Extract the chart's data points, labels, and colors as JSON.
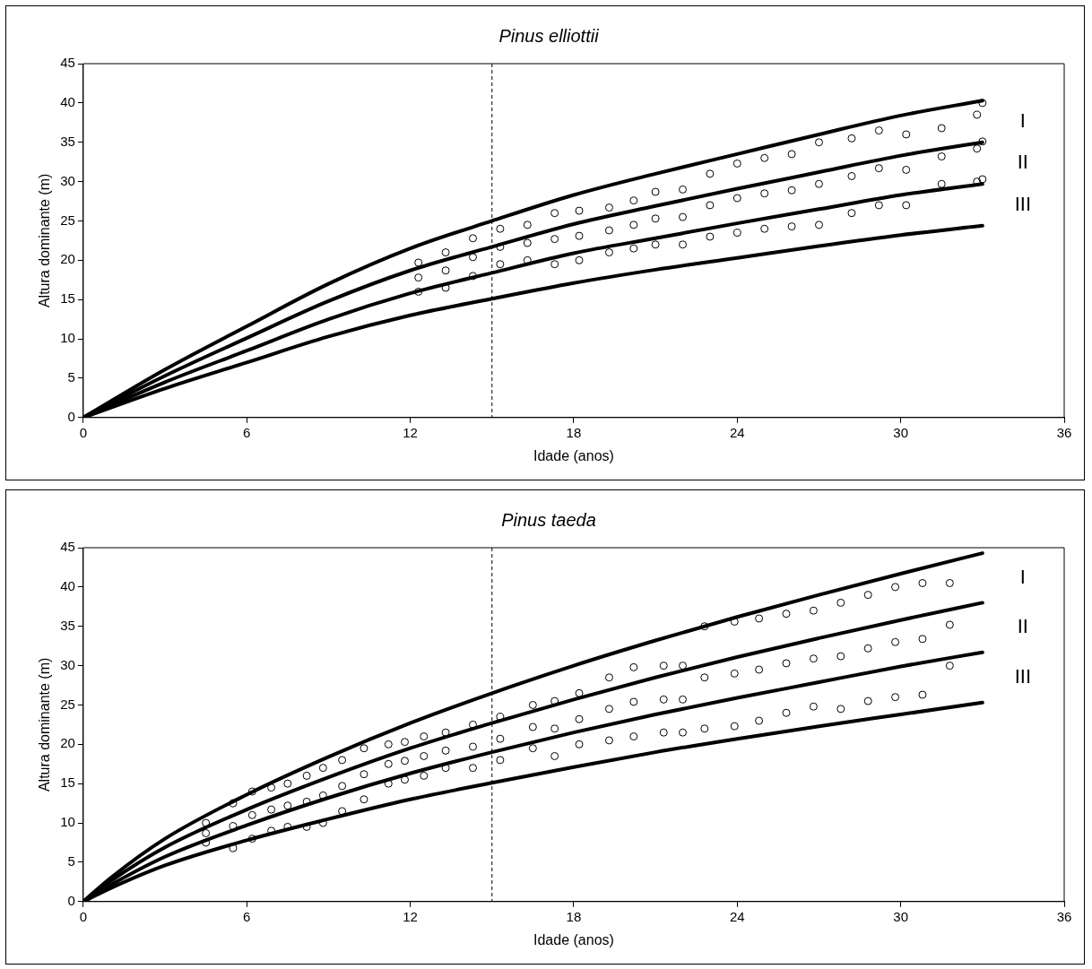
{
  "chart_data": [
    {
      "type": "scatter",
      "title": "Pinus elliottii",
      "xlabel": "Idade (anos)",
      "ylabel": "Altura dominante (m)",
      "xlim": [
        0,
        36
      ],
      "xticks": [
        0,
        6,
        12,
        18,
        24,
        30,
        36
      ],
      "ylim": [
        0,
        45
      ],
      "yticks": [
        0,
        5,
        10,
        15,
        20,
        25,
        30,
        35,
        40,
        45
      ],
      "grid": false,
      "legend": false,
      "ref_lines": [
        {
          "axis": "x",
          "value": 15,
          "color": "#000000",
          "line_style": "dashed"
        }
      ],
      "annotations": [
        "I",
        "II",
        "III"
      ],
      "series": [
        {
          "type": "scatter",
          "marker": "circle",
          "color": "#000000",
          "x": [
            12.3,
            12.3,
            12.3,
            13.3,
            13.3,
            13.3,
            14.3,
            14.3,
            14.3,
            15.3,
            15.3,
            15.3,
            16.3,
            16.3,
            16.3,
            17.3,
            17.3,
            17.3,
            18.2,
            18.2,
            18.2,
            19.3,
            19.3,
            19.3,
            20.2,
            20.2,
            20.2,
            21,
            21,
            21,
            22,
            22,
            22,
            23,
            23,
            23,
            24,
            24,
            24,
            25,
            25,
            25,
            26,
            26,
            26,
            27,
            27,
            27,
            28.2,
            28.2,
            28.2,
            29.2,
            29.2,
            29.2,
            30.2,
            30.2,
            30.2,
            31.5,
            31.5,
            31.5,
            32.8,
            32.8,
            32.8,
            33,
            33,
            33
          ],
          "values": [
            16,
            17.8,
            19.7,
            16.5,
            18.7,
            21,
            18,
            20.4,
            22.8,
            19.5,
            21.7,
            24,
            20,
            22.2,
            24.5,
            19.5,
            22.7,
            26,
            20,
            23.1,
            26.3,
            21,
            23.8,
            26.7,
            21.5,
            24.5,
            27.6,
            22,
            25.3,
            28.7,
            22,
            25.5,
            29,
            23,
            27,
            31,
            23.5,
            27.9,
            32.3,
            24,
            28.5,
            33,
            24.3,
            28.9,
            33.5,
            24.5,
            29.7,
            35,
            26,
            30.7,
            35.5,
            27,
            31.7,
            36.5,
            27,
            31.5,
            36,
            29.7,
            33.2,
            36.8,
            30,
            34.2,
            38.5,
            30.3,
            35.1,
            40
          ]
        },
        {
          "type": "line",
          "marker": "none",
          "color": "#000000",
          "x": [
            0,
            3,
            6,
            9,
            12,
            15,
            18,
            21,
            24,
            27,
            30,
            33
          ],
          "values": [
            0,
            6.1,
            11.6,
            17,
            21.5,
            25,
            28.3,
            31,
            33.5,
            36,
            38.4,
            40.3
          ]
        },
        {
          "type": "line",
          "marker": "none",
          "color": "#000000",
          "x": [
            0,
            3,
            6,
            9,
            12,
            15,
            18,
            21,
            24,
            27,
            30,
            33
          ],
          "values": [
            0,
            5.3,
            10.1,
            14.8,
            18.7,
            21.7,
            24.6,
            26.9,
            29.1,
            31.2,
            33.3,
            35
          ]
        },
        {
          "type": "line",
          "marker": "none",
          "color": "#000000",
          "x": [
            0,
            3,
            6,
            9,
            12,
            15,
            18,
            21,
            24,
            27,
            30,
            33
          ],
          "values": [
            0,
            4.5,
            8.5,
            12.5,
            15.8,
            18.4,
            20.9,
            22.8,
            24.7,
            26.5,
            28.3,
            29.7
          ]
        },
        {
          "type": "line",
          "marker": "none",
          "color": "#000000",
          "x": [
            0,
            3,
            6,
            9,
            12,
            15,
            18,
            21,
            24,
            27,
            30,
            33
          ],
          "values": [
            0,
            3.7,
            7,
            10.3,
            13,
            15.1,
            17.1,
            18.8,
            20.3,
            21.8,
            23.2,
            24.4
          ]
        }
      ]
    },
    {
      "type": "scatter",
      "title": "Pinus taeda",
      "xlabel": "Idade (anos)",
      "ylabel": "Altura dominante (m)",
      "xlim": [
        0,
        36
      ],
      "xticks": [
        0,
        6,
        12,
        18,
        24,
        30,
        36
      ],
      "ylim": [
        0,
        45
      ],
      "yticks": [
        0,
        5,
        10,
        15,
        20,
        25,
        30,
        35,
        40,
        45
      ],
      "grid": false,
      "legend": false,
      "ref_lines": [
        {
          "axis": "x",
          "value": 15,
          "color": "#000000",
          "line_style": "dashed"
        }
      ],
      "annotations": [
        "I",
        "II",
        "III"
      ],
      "series": [
        {
          "type": "scatter",
          "marker": "circle",
          "color": "#000000",
          "x": [
            4.5,
            4.5,
            4.5,
            5.5,
            5.5,
            5.5,
            6.2,
            6.2,
            6.2,
            6.9,
            6.9,
            6.9,
            7.5,
            7.5,
            7.5,
            8.2,
            8.2,
            8.2,
            8.8,
            8.8,
            8.8,
            9.5,
            9.5,
            9.5,
            10.3,
            10.3,
            10.3,
            11.2,
            11.2,
            11.2,
            11.8,
            11.8,
            11.8,
            12.5,
            12.5,
            12.5,
            13.3,
            13.3,
            13.3,
            14.3,
            14.3,
            14.3,
            15.3,
            15.3,
            15.3,
            16.5,
            16.5,
            16.5,
            17.3,
            17.3,
            17.3,
            18.2,
            18.2,
            18.2,
            19.3,
            19.3,
            19.3,
            20.2,
            20.2,
            20.2,
            21.3,
            21.3,
            21.3,
            22,
            22,
            22,
            22.8,
            22.8,
            22.8,
            23.9,
            23.9,
            23.9,
            24.8,
            24.8,
            24.8,
            25.8,
            25.8,
            25.8,
            26.8,
            26.8,
            26.8,
            27.8,
            27.8,
            27.8,
            28.8,
            28.8,
            28.8,
            29.8,
            29.8,
            29.8,
            30.8,
            30.8,
            30.8,
            31.8,
            31.8,
            31.8
          ],
          "values": [
            7.5,
            8.7,
            10,
            6.8,
            9.6,
            12.5,
            8,
            11,
            14,
            9,
            11.7,
            14.5,
            9.5,
            12.2,
            15,
            9.5,
            12.7,
            16,
            10,
            13.5,
            17,
            11.5,
            14.7,
            18,
            13,
            16.2,
            19.5,
            15,
            17.5,
            20,
            15.5,
            17.9,
            20.3,
            16,
            18.5,
            21,
            17,
            19.2,
            21.5,
            17,
            19.7,
            22.5,
            18,
            20.7,
            23.5,
            19.5,
            22.2,
            25,
            18.5,
            22,
            25.5,
            20,
            23.2,
            26.5,
            20.5,
            24.5,
            28.5,
            21,
            25.4,
            29.8,
            21.5,
            25.7,
            30,
            21.5,
            25.7,
            30,
            22,
            28.5,
            35,
            22.3,
            29,
            35.6,
            23,
            29.5,
            36,
            24,
            30.3,
            36.6,
            24.8,
            30.9,
            37,
            24.5,
            31.2,
            38,
            25.5,
            32.2,
            39,
            26,
            33,
            40,
            26.3,
            33.4,
            40.5,
            30,
            35.2,
            40.5
          ]
        },
        {
          "type": "line",
          "marker": "none",
          "color": "#000000",
          "x": [
            0,
            1,
            3,
            6,
            9,
            12,
            15,
            18,
            21,
            24,
            27,
            30,
            33
          ],
          "values": [
            0,
            3,
            8,
            13.6,
            18.4,
            22.7,
            26.5,
            30,
            33.2,
            36.2,
            39,
            41.7,
            44.3
          ]
        },
        {
          "type": "line",
          "marker": "none",
          "color": "#000000",
          "x": [
            0,
            1,
            3,
            6,
            9,
            12,
            15,
            18,
            21,
            24,
            27,
            30,
            33
          ],
          "values": [
            0,
            2.6,
            6.9,
            11.7,
            15.8,
            19.5,
            22.7,
            25.7,
            28.5,
            31.1,
            33.5,
            35.8,
            38
          ]
        },
        {
          "type": "line",
          "marker": "none",
          "color": "#000000",
          "x": [
            0,
            1,
            3,
            6,
            9,
            12,
            15,
            18,
            21,
            24,
            27,
            30,
            33
          ],
          "values": [
            0,
            2.1,
            5.7,
            9.7,
            13.2,
            16.3,
            19,
            21.5,
            23.8,
            25.9,
            27.9,
            29.9,
            31.7
          ]
        },
        {
          "type": "line",
          "marker": "none",
          "color": "#000000",
          "x": [
            0,
            1,
            3,
            6,
            9,
            12,
            15,
            18,
            21,
            24,
            27,
            30,
            33
          ],
          "values": [
            0,
            1.7,
            4.6,
            7.8,
            10.5,
            13,
            15.1,
            17.1,
            19,
            20.7,
            22.3,
            23.8,
            25.3
          ]
        }
      ]
    }
  ]
}
